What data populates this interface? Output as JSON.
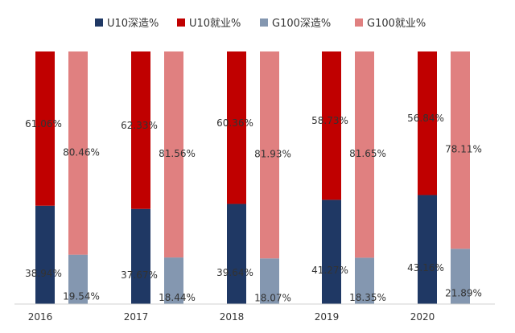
{
  "chart_data": {
    "type": "bar",
    "stacked": true,
    "categories": [
      "2016",
      "2017",
      "2018",
      "2019",
      "2020"
    ],
    "ylim": [
      0,
      100
    ],
    "grid": false,
    "legend_position": "top",
    "groups": [
      {
        "name": "U10",
        "series": [
          {
            "name": "U10深造%",
            "color": "#1f3864",
            "values": [
              38.94,
              37.67,
              39.64,
              41.27,
              43.16
            ],
            "labels": [
              "38.94%",
              "37.67%",
              "39.64%",
              "41.27%",
              "43.16%"
            ]
          },
          {
            "name": "U10就业%",
            "color": "#c00000",
            "values": [
              61.06,
              62.33,
              60.36,
              58.73,
              56.84
            ],
            "labels": [
              "61.06%",
              "62.33%",
              "60.36%",
              "58.73%",
              "56.84%"
            ]
          }
        ]
      },
      {
        "name": "G100",
        "series": [
          {
            "name": "G100深造%",
            "color": "#8497b0",
            "values": [
              19.54,
              18.44,
              18.07,
              18.35,
              21.89
            ],
            "labels": [
              "19.54%",
              "18.44%",
              "18.07%",
              "18.35%",
              "21.89%"
            ]
          },
          {
            "name": "G100就业%",
            "color": "#e08080",
            "values": [
              80.46,
              81.56,
              81.93,
              81.65,
              78.11
            ],
            "labels": [
              "80.46%",
              "81.56%",
              "81.93%",
              "81.65%",
              "78.11%"
            ]
          }
        ]
      }
    ]
  }
}
